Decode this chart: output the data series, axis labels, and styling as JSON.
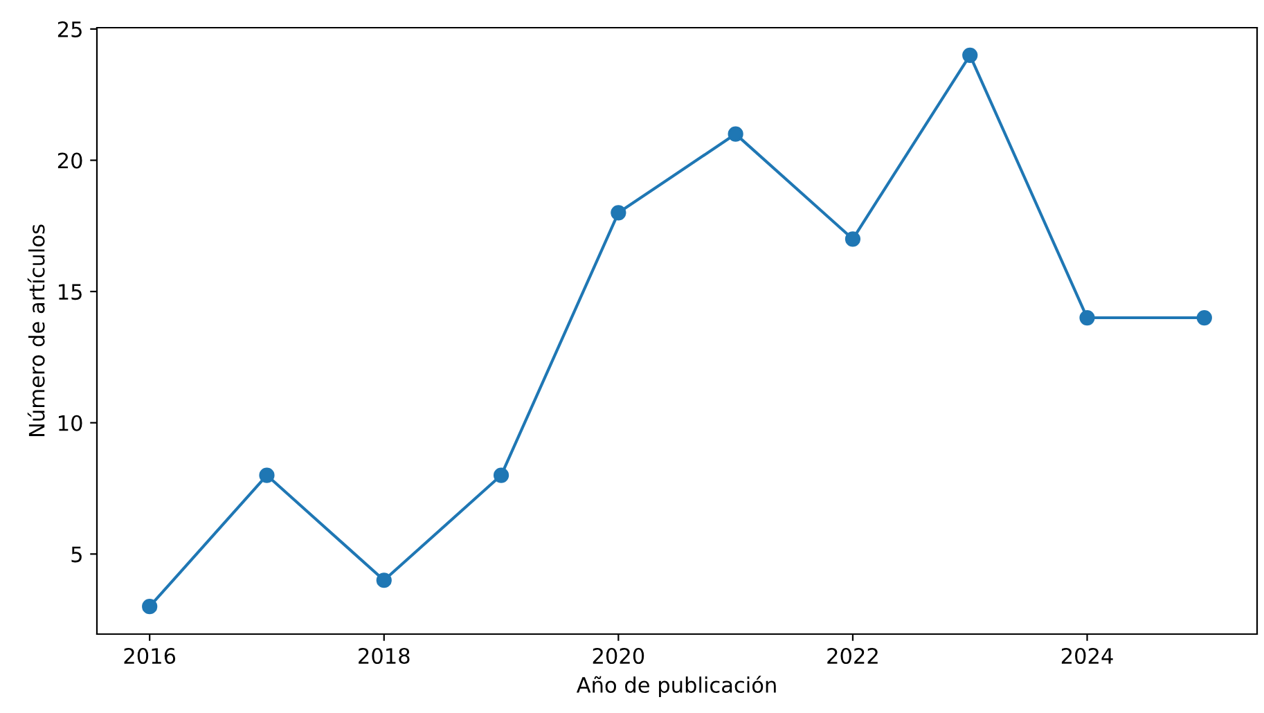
{
  "chart_data": {
    "type": "line",
    "xlabel": "Año de publicación",
    "ylabel": "Número de artículos",
    "x": [
      2016,
      2017,
      2018,
      2019,
      2020,
      2021,
      2022,
      2023,
      2024,
      2025
    ],
    "series": [
      {
        "color": "#1f77b4",
        "values": [
          3,
          8,
          4,
          8,
          18,
          21,
          17,
          24,
          14,
          14
        ]
      }
    ],
    "xlim": [
      2015.55,
      2025.45
    ],
    "ylim": [
      1.95,
      25.05
    ],
    "xticks": [
      2016,
      2018,
      2020,
      2022,
      2024
    ],
    "yticks": [
      5,
      10,
      15,
      20,
      25
    ],
    "marker": "circle",
    "line_style": "solid",
    "grid": false
  }
}
